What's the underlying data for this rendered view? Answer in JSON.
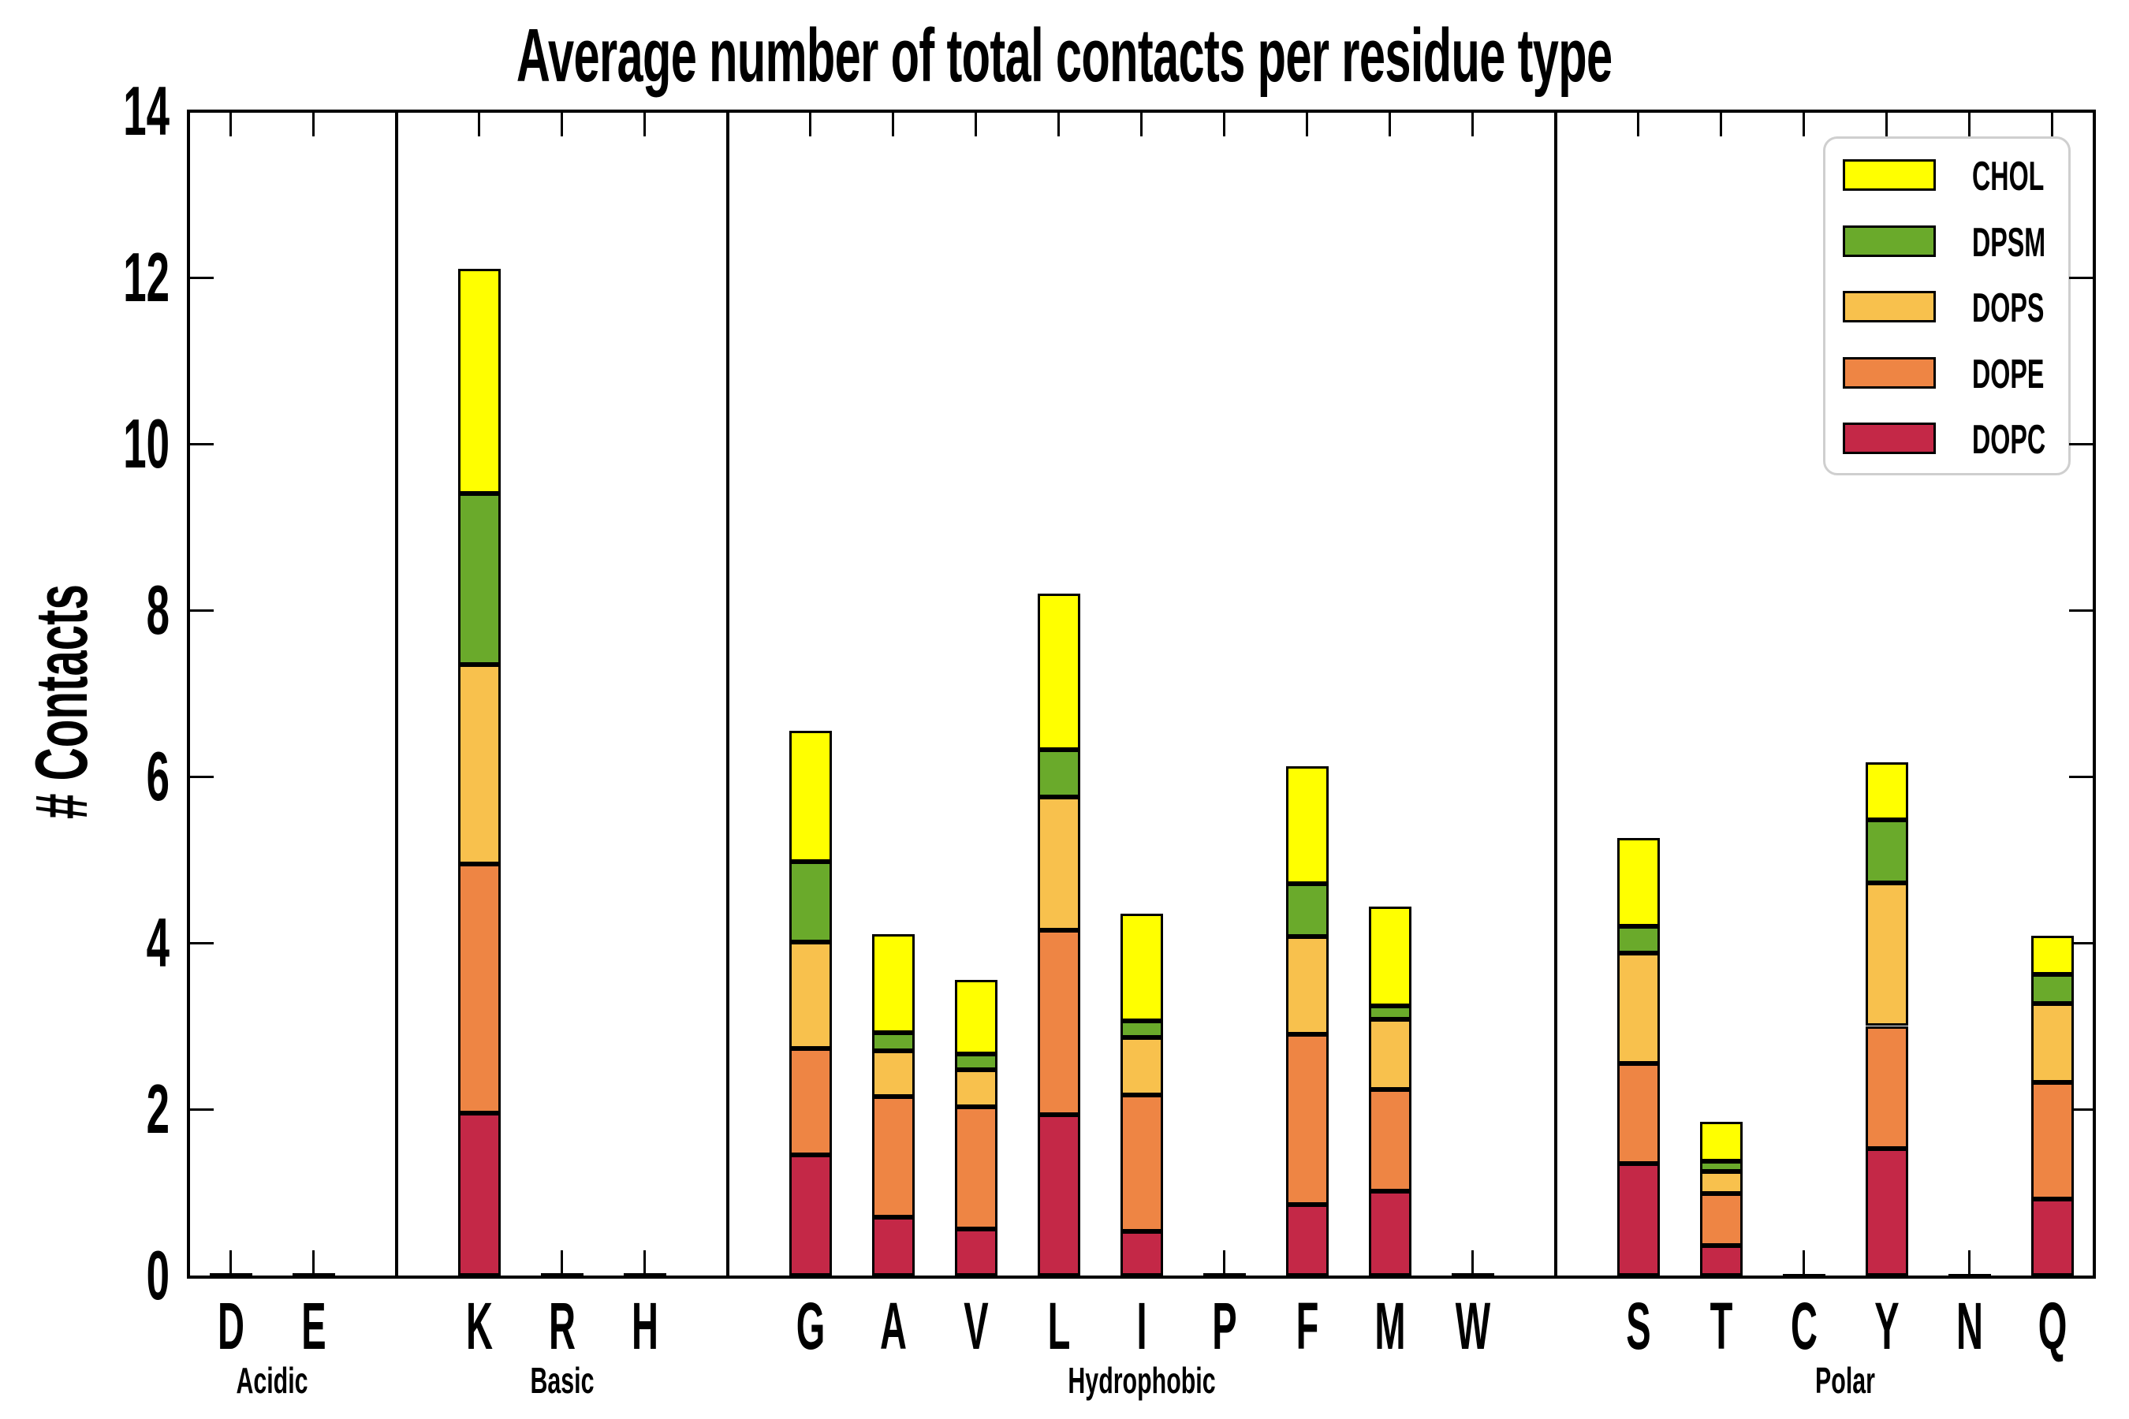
{
  "title": "Average number of total contacts per residue type",
  "ylabel": "# Contacts",
  "chart_data": {
    "type": "bar",
    "stacked": true,
    "title": "Average number of total contacts per residue type",
    "xlabel": "",
    "ylabel": "# Contacts",
    "ylim": [
      0,
      14
    ],
    "yticks": [
      0,
      2,
      4,
      6,
      8,
      10,
      12,
      14
    ],
    "grid": false,
    "legend_position": "upper right",
    "categories": [
      "D",
      "E",
      "K",
      "R",
      "H",
      "G",
      "A",
      "V",
      "L",
      "I",
      "P",
      "F",
      "M",
      "W",
      "S",
      "T",
      "C",
      "Y",
      "N",
      "Q"
    ],
    "groups": [
      {
        "label": "Acidic",
        "members": [
          "D",
          "E"
        ]
      },
      {
        "label": "Basic",
        "members": [
          "K",
          "R",
          "H"
        ]
      },
      {
        "label": "Hydrophobic",
        "members": [
          "G",
          "A",
          "V",
          "L",
          "I",
          "P",
          "F",
          "M",
          "W"
        ]
      },
      {
        "label": "Polar",
        "members": [
          "S",
          "T",
          "C",
          "Y",
          "N",
          "Q"
        ]
      }
    ],
    "series": [
      {
        "name": "DOPC",
        "color": "#c42847",
        "values": [
          0.03,
          0.03,
          1.95,
          0.03,
          0.03,
          1.45,
          0.7,
          0.56,
          1.93,
          0.53,
          0.03,
          0.85,
          1.01,
          0.03,
          1.35,
          0.36,
          0.02,
          1.53,
          0.02,
          0.92
        ]
      },
      {
        "name": "DOPE",
        "color": "#ee8544",
        "values": [
          0,
          0,
          3.0,
          0,
          0,
          1.28,
          1.45,
          1.47,
          2.22,
          1.64,
          0,
          2.05,
          1.23,
          0,
          1.2,
          0.63,
          0,
          1.47,
          0,
          1.4
        ]
      },
      {
        "name": "DOPS",
        "color": "#f8c14d",
        "values": [
          0,
          0,
          2.4,
          0,
          0,
          1.28,
          0.55,
          0.44,
          1.6,
          0.69,
          0,
          1.18,
          0.84,
          0,
          1.33,
          0.26,
          0,
          1.72,
          0,
          0.95
        ]
      },
      {
        "name": "DPSM",
        "color": "#6aaa2b",
        "values": [
          0,
          0,
          2.05,
          0,
          0,
          0.97,
          0.22,
          0.19,
          0.57,
          0.2,
          0,
          0.63,
          0.16,
          0,
          0.32,
          0.12,
          0,
          0.76,
          0,
          0.35
        ]
      },
      {
        "name": "CHOL",
        "color": "#ffff00",
        "values": [
          0,
          0,
          2.7,
          0,
          0,
          1.57,
          1.18,
          0.89,
          1.88,
          1.29,
          0,
          1.41,
          1.2,
          0,
          1.06,
          0.48,
          0,
          0.69,
          0,
          0.47
        ]
      }
    ],
    "legend_order": [
      "CHOL",
      "DPSM",
      "DOPS",
      "DOPE",
      "DOPC"
    ],
    "totals": {
      "D": 0.03,
      "E": 0.03,
      "K": 12.1,
      "R": 0.03,
      "H": 0.03,
      "G": 6.55,
      "A": 4.1,
      "V": 3.55,
      "L": 8.2,
      "I": 4.35,
      "P": 0.03,
      "F": 6.12,
      "M": 4.44,
      "W": 0.03,
      "S": 5.26,
      "T": 1.85,
      "C": 0.02,
      "Y": 6.17,
      "N": 0.02,
      "Q": 4.09
    }
  }
}
